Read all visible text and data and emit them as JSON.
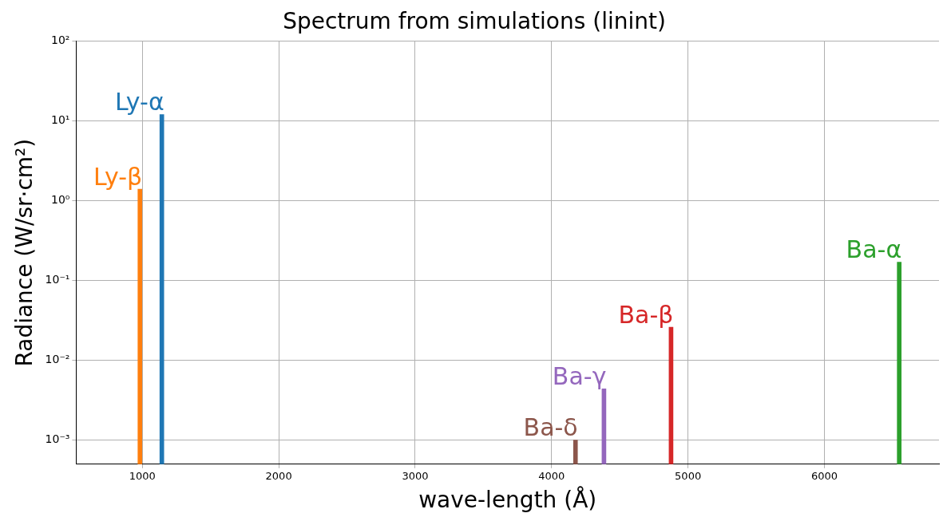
{
  "chart_data": {
    "type": "bar",
    "title": "Spectrum from simulations (linint)",
    "xlabel": "wave-length (Å)",
    "ylabel": "Radiance (W/sr·cm²)",
    "series": [
      {
        "name": "Ly-α",
        "color": "#1f77b4",
        "x": [
          1216
        ],
        "values": [
          12
        ]
      },
      {
        "name": "Ly-β",
        "color": "#ff7f0e",
        "x": [
          1026
        ],
        "values": [
          1.4
        ]
      },
      {
        "name": "Ba-α",
        "color": "#2ca02c",
        "x": [
          6563
        ],
        "values": [
          0.17
        ]
      },
      {
        "name": "Ba-β",
        "color": "#d62728",
        "x": [
          4861
        ],
        "values": [
          0.026
        ]
      },
      {
        "name": "Ba-γ",
        "color": "#9467bd",
        "x": [
          4340
        ],
        "values": [
          0.0044
        ]
      },
      {
        "name": "Ba-δ",
        "color": "#8c564b",
        "x": [
          4102
        ],
        "values": [
          0.001
        ]
      }
    ],
    "xlim": [
      515,
      6840
    ],
    "xticks": [
      1000,
      2000,
      3000,
      4000,
      5000,
      6000
    ],
    "ylim": [
      0.0005,
      100
    ],
    "yticks": [
      {
        "value": 0.001,
        "label": "10⁻³"
      },
      {
        "value": 0.01,
        "label": "10⁻²"
      },
      {
        "value": 0.1,
        "label": "10⁻¹"
      },
      {
        "value": 1,
        "label": "10⁰"
      },
      {
        "value": 10,
        "label": "10¹"
      },
      {
        "value": 100,
        "label": "10²"
      }
    ],
    "log": "y",
    "grid": true,
    "legend": false
  }
}
